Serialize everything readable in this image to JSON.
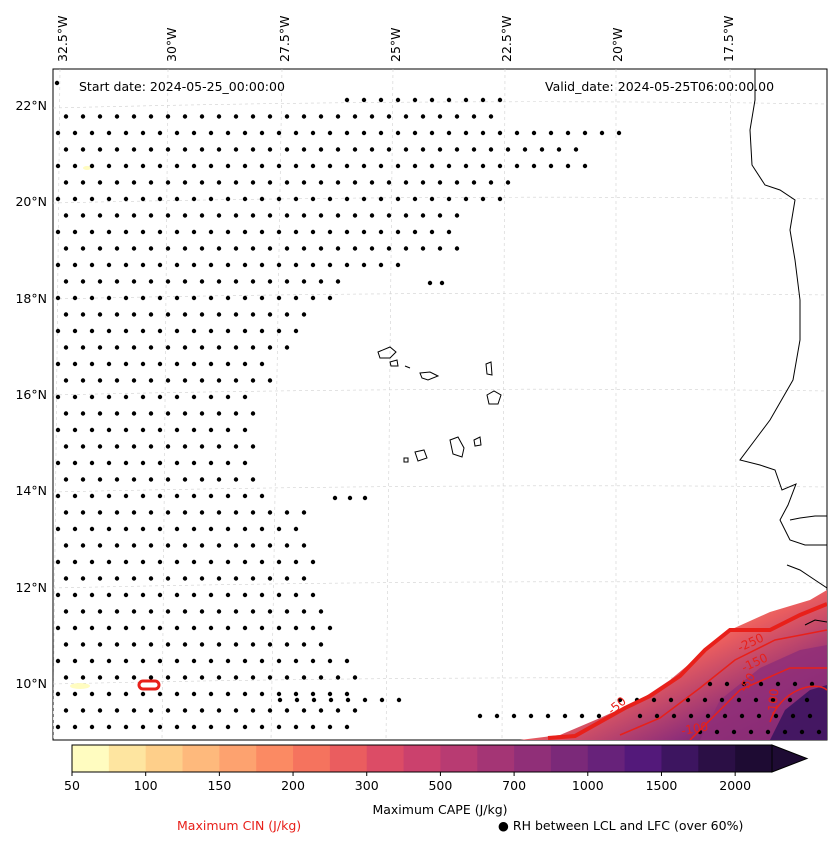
{
  "header": {
    "start_date": "Start date: 2024-05-25_00:00:00",
    "valid_date": "Valid_date: 2024-05-25T06:00:00.00"
  },
  "axes": {
    "lon_labels": [
      "32.5°W",
      "30°W",
      "27.5°W",
      "25°W",
      "22.5°W",
      "20°W",
      "17.5°W"
    ],
    "lat_labels": [
      "22°N",
      "20°N",
      "18°N",
      "16°N",
      "14°N",
      "12°N",
      "10°N"
    ]
  },
  "colorbar": {
    "title": "Maximum CAPE (J/kg)",
    "tick_labels": [
      "50",
      "100",
      "150",
      "200",
      "300",
      "500",
      "700",
      "1000",
      "1500",
      "2000"
    ],
    "colors": [
      "#fffcc0",
      "#fee5a0",
      "#fecf8a",
      "#feb97c",
      "#fda26f",
      "#fb8a63",
      "#f5735e",
      "#ea5d5f",
      "#dc4c66",
      "#cb416d",
      "#b83b72",
      "#a43575",
      "#902f78",
      "#7b2979",
      "#67227a",
      "#53197a",
      "#3d1560",
      "#2b0f45",
      "#1e0b33"
    ]
  },
  "contours": {
    "labels": [
      "-250",
      "-150",
      "-50",
      "-50",
      "-100",
      "-100",
      "-50"
    ],
    "line_color": "#e8201a"
  },
  "legend": {
    "cin_label": "Maximum CIN (J/kg)",
    "cin_color": "#e8201a",
    "rh_label": "● RH between LCL and LFC (over 60%)"
  }
}
